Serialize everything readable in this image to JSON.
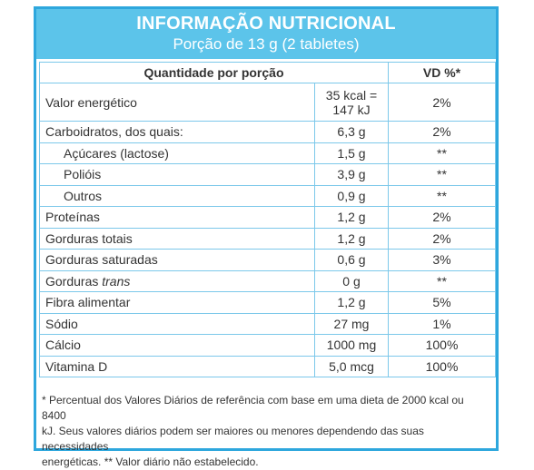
{
  "header": {
    "title": "INFORMAÇÃO NUTRICIONAL",
    "serving": "Porção de 13 g (2 tabletes)"
  },
  "table": {
    "columns": [
      "Quantidade por porção",
      "VD %*"
    ],
    "rows": [
      {
        "label": "Valor energético",
        "quantity": [
          "35 kcal =",
          "147 kJ"
        ],
        "vd": "2%"
      },
      {
        "label": "Carboidratos, dos quais:",
        "quantity": [
          "6,3 g"
        ],
        "vd": "2%"
      },
      {
        "label": "Açúcares (lactose)",
        "quantity": [
          "1,5 g"
        ],
        "vd": "**",
        "indent": true
      },
      {
        "label": "Polióis",
        "quantity": [
          "3,9 g"
        ],
        "vd": "**",
        "indent": true
      },
      {
        "label": "Outros",
        "quantity": [
          "0,9 g"
        ],
        "vd": "**",
        "indent": true
      },
      {
        "label": "Proteínas",
        "quantity": [
          "1,2 g"
        ],
        "vd": "2%"
      },
      {
        "label": "Gorduras totais",
        "quantity": [
          "1,2 g"
        ],
        "vd": "2%"
      },
      {
        "label": "Gorduras saturadas",
        "quantity": [
          "0,6 g"
        ],
        "vd": "3%"
      },
      {
        "label": "Gorduras",
        "label_em": "trans",
        "quantity": [
          "0 g"
        ],
        "vd": "**"
      },
      {
        "label": "Fibra alimentar",
        "quantity": [
          "1,2 g"
        ],
        "vd": "5%"
      },
      {
        "label": "Sódio",
        "quantity": [
          "27 mg"
        ],
        "vd": "1%"
      },
      {
        "label": "Cálcio",
        "quantity": [
          "1000 mg"
        ],
        "vd": "100%"
      },
      {
        "label": "Vitamina D",
        "quantity": [
          "5,0 mcg"
        ],
        "vd": "100%"
      }
    ]
  },
  "footnote": [
    "* Percentual dos Valores Diários de referência com base em uma dieta de 2000 kcal ou 8400",
    "kJ. Seus valores diários podem ser maiores ou menores dependendo das suas necessidades",
    "energéticas. ** Valor diário não estabelecido."
  ]
}
